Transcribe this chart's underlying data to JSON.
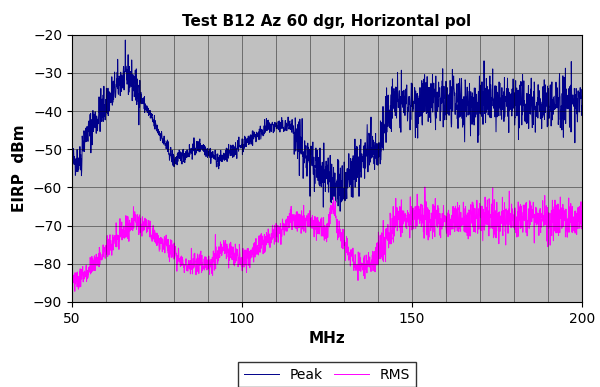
{
  "title": "Test B12 Az 60 dgr, Horizontal pol",
  "xlabel": "MHz",
  "ylabel": "EIRP  dBm",
  "xlim": [
    50,
    200
  ],
  "ylim": [
    -90,
    -20
  ],
  "yticks": [
    -90,
    -80,
    -70,
    -60,
    -50,
    -40,
    -30,
    -20
  ],
  "xticks": [
    50,
    100,
    150,
    200
  ],
  "peak_color": "#00008B",
  "rms_color": "#FF00FF",
  "bg_color": "#C0C0C0",
  "grid_color": "#000000",
  "legend_labels": [
    "Peak",
    "RMS"
  ],
  "title_fontsize": 11,
  "axis_label_fontsize": 11,
  "tick_fontsize": 10
}
